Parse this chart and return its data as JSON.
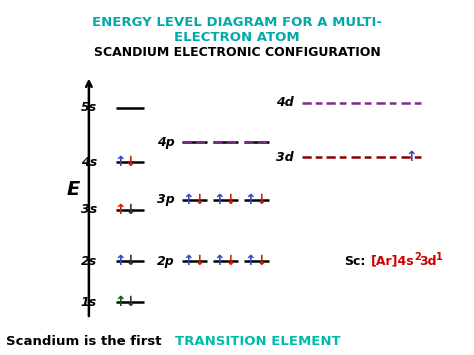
{
  "title1_line1": "ENERGY LEVEL DIAGRAM FOR A MULTI-",
  "title1_line2": "ELECTRON ATOM",
  "title1_color": "#00AAAA",
  "title2": "SCANDIUM ELECTRONIC CONFIGURATION",
  "title2_color": "#000000",
  "bottom_black": "Scandium is the first ",
  "bottom_teal": "TRANSITION ELEMENT",
  "bottom_teal_color": "#00BBAA",
  "background_color": "#FFFFFF",
  "arrow_up_blue": "↑",
  "arrow_down_red": "↓",
  "sc_config_color": "#CC0000",
  "dark_red": "#8B0000",
  "purple": "#7B2D8B",
  "green": "#006400"
}
